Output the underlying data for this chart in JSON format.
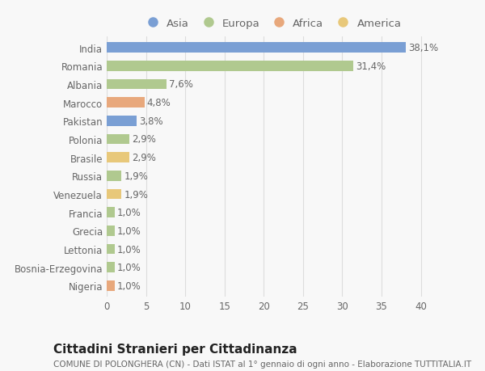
{
  "countries": [
    "India",
    "Romania",
    "Albania",
    "Marocco",
    "Pakistan",
    "Polonia",
    "Brasile",
    "Russia",
    "Venezuela",
    "Francia",
    "Grecia",
    "Lettonia",
    "Bosnia-Erzegovina",
    "Nigeria"
  ],
  "values": [
    38.1,
    31.4,
    7.6,
    4.8,
    3.8,
    2.9,
    2.9,
    1.9,
    1.9,
    1.0,
    1.0,
    1.0,
    1.0,
    1.0
  ],
  "labels": [
    "38,1%",
    "31,4%",
    "7,6%",
    "4,8%",
    "3,8%",
    "2,9%",
    "2,9%",
    "1,9%",
    "1,9%",
    "1,0%",
    "1,0%",
    "1,0%",
    "1,0%",
    "1,0%"
  ],
  "colors": [
    "#7a9fd4",
    "#b0c98f",
    "#b0c98f",
    "#e8a87c",
    "#7a9fd4",
    "#b0c98f",
    "#e8c87a",
    "#b0c98f",
    "#e8c87a",
    "#b0c98f",
    "#b0c98f",
    "#b0c98f",
    "#b0c98f",
    "#e8a87c"
  ],
  "legend_labels": [
    "Asia",
    "Europa",
    "Africa",
    "America"
  ],
  "legend_colors": [
    "#7a9fd4",
    "#b0c98f",
    "#e8a87c",
    "#e8c87a"
  ],
  "title": "Cittadini Stranieri per Cittadinanza",
  "subtitle": "COMUNE DI POLONGHERA (CN) - Dati ISTAT al 1° gennaio di ogni anno - Elaborazione TUTTITALIA.IT",
  "xlabel_ticks": [
    0,
    5,
    10,
    15,
    20,
    25,
    30,
    35,
    40
  ],
  "xlim": [
    0,
    42
  ],
  "background_color": "#f8f8f8",
  "grid_color": "#dddddd",
  "bar_height": 0.55,
  "label_fontsize": 8.5,
  "tick_fontsize": 8.5,
  "legend_fontsize": 9.5,
  "title_fontsize": 11,
  "subtitle_fontsize": 7.5,
  "text_color": "#666666",
  "title_color": "#222222"
}
